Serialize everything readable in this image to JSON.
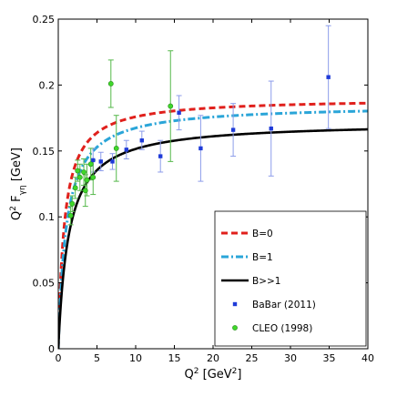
{
  "chart_data": {
    "type": "scatter",
    "title": "",
    "xlabel": {
      "base": "Q",
      "sup": "2",
      "unit_open": " [GeV",
      "unit_sup": "2",
      "unit_close": "]"
    },
    "ylabel": {
      "base": "Q",
      "sup": "2",
      "mid": " F",
      "sub": "γη",
      "unit": " [GeV]"
    },
    "xlim": [
      0,
      40
    ],
    "ylim": [
      0,
      0.25
    ],
    "xticks": [
      0,
      5,
      10,
      15,
      20,
      25,
      30,
      35,
      40
    ],
    "yticks": [
      0,
      0.05,
      0.1,
      0.15,
      0.2,
      0.25
    ],
    "xtick_labels": [
      "0",
      "5",
      "10",
      "15",
      "20",
      "25",
      "30",
      "35",
      "40"
    ],
    "ytick_labels": [
      "0",
      "0.05",
      "0.1",
      "0.15",
      "0.2",
      "0.25"
    ],
    "grid": false,
    "legend_position": "bottom-right",
    "curves": [
      {
        "name": "B=0",
        "color": "#e0201c",
        "style": "dashed",
        "asymptote": 0.19,
        "scale": 0.8,
        "power": 1.0
      },
      {
        "name": "B=1",
        "color": "#2aa5d8",
        "style": "dashdot",
        "asymptote": 0.185,
        "scale": 1.05,
        "power": 1.0
      },
      {
        "name": "B>>1",
        "color": "#000000",
        "style": "solid",
        "asymptote": 0.172,
        "scale": 1.35,
        "power": 1.0
      }
    ],
    "series": [
      {
        "name": "BaBar (2011)",
        "color": "#1f3bd8",
        "error_color": "#8c9cea",
        "marker": "square",
        "points": [
          {
            "x": 4.5,
            "y": 0.143,
            "err": 0.009
          },
          {
            "x": 5.5,
            "y": 0.142,
            "err": 0.007
          },
          {
            "x": 7.0,
            "y": 0.142,
            "err": 0.006
          },
          {
            "x": 8.8,
            "y": 0.151,
            "err": 0.007
          },
          {
            "x": 10.8,
            "y": 0.158,
            "err": 0.007
          },
          {
            "x": 13.2,
            "y": 0.146,
            "err": 0.012
          },
          {
            "x": 15.6,
            "y": 0.179,
            "err": 0.013
          },
          {
            "x": 18.4,
            "y": 0.152,
            "err": 0.025
          },
          {
            "x": 22.6,
            "y": 0.166,
            "err": 0.02
          },
          {
            "x": 27.5,
            "y": 0.167,
            "err": 0.036
          },
          {
            "x": 34.9,
            "y": 0.206,
            "err": 0.039
          }
        ]
      },
      {
        "name": "CLEO (1998)",
        "color": "#3fd82a",
        "error_color": "#55b84a",
        "marker": "circle",
        "points": [
          {
            "x": 1.6,
            "y": 0.101,
            "err": 0.007
          },
          {
            "x": 1.8,
            "y": 0.11,
            "err": 0.006
          },
          {
            "x": 2.2,
            "y": 0.122,
            "err": 0.008
          },
          {
            "x": 2.5,
            "y": 0.135,
            "err": 0.008
          },
          {
            "x": 2.8,
            "y": 0.13,
            "err": 0.01
          },
          {
            "x": 3.3,
            "y": 0.134,
            "err": 0.01
          },
          {
            "x": 3.5,
            "y": 0.12,
            "err": 0.012
          },
          {
            "x": 3.7,
            "y": 0.128,
            "err": 0.012
          },
          {
            "x": 4.2,
            "y": 0.14,
            "err": 0.012
          },
          {
            "x": 4.5,
            "y": 0.13,
            "err": 0.013
          },
          {
            "x": 6.8,
            "y": 0.201,
            "err": 0.018
          },
          {
            "x": 7.5,
            "y": 0.152,
            "err": 0.025
          },
          {
            "x": 14.5,
            "y": 0.184,
            "err": 0.042
          }
        ]
      }
    ],
    "legend_order": [
      "B=0",
      "B=1",
      "B>>1",
      "BaBar (2011)",
      "CLEO (1998)"
    ]
  }
}
